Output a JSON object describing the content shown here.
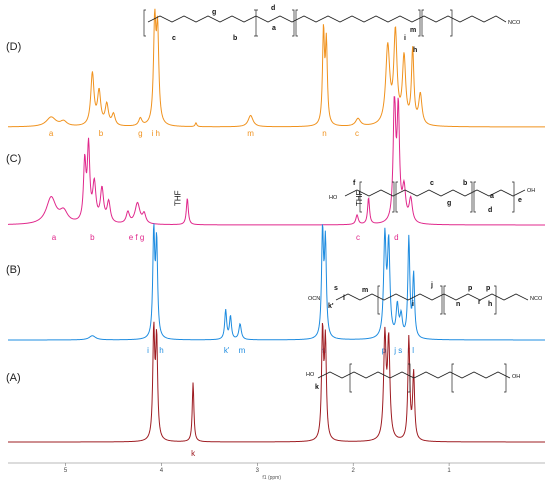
{
  "chart_data": {
    "type": "line",
    "xlabel": "f1 (ppm)",
    "xlim": [
      5.6,
      0.0
    ],
    "x_ticks": [
      "5",
      "4",
      "3",
      "2",
      "1"
    ],
    "series": [
      {
        "name": "(D)",
        "color": "#f0921e",
        "peaks": [
          {
            "x": 5.15,
            "h": 0.1,
            "w": 0.06
          },
          {
            "x": 5.02,
            "h": 0.05,
            "w": 0.04
          },
          {
            "x": 4.72,
            "h": 0.55,
            "w": 0.02
          },
          {
            "x": 4.65,
            "h": 0.35,
            "w": 0.02
          },
          {
            "x": 4.57,
            "h": 0.22,
            "w": 0.02
          },
          {
            "x": 4.5,
            "h": 0.12,
            "w": 0.02
          },
          {
            "x": 4.22,
            "h": 0.08,
            "w": 0.02
          },
          {
            "x": 4.07,
            "h": 1.05,
            "w": 0.015
          },
          {
            "x": 4.04,
            "h": 0.95,
            "w": 0.015
          },
          {
            "x": 3.64,
            "h": 0.04,
            "w": 0.01
          },
          {
            "x": 3.07,
            "h": 0.12,
            "w": 0.03
          },
          {
            "x": 2.31,
            "h": 0.98,
            "w": 0.012
          },
          {
            "x": 2.28,
            "h": 0.85,
            "w": 0.012
          },
          {
            "x": 1.95,
            "h": 0.08,
            "w": 0.03
          },
          {
            "x": 1.64,
            "h": 0.82,
            "w": 0.025
          },
          {
            "x": 1.56,
            "h": 0.95,
            "w": 0.02
          },
          {
            "x": 1.47,
            "h": 0.7,
            "w": 0.02
          },
          {
            "x": 1.38,
            "h": 0.78,
            "w": 0.015
          },
          {
            "x": 1.3,
            "h": 0.32,
            "w": 0.02
          }
        ],
        "peak_labels": [
          {
            "text": "a",
            "x": 5.15
          },
          {
            "text": "b",
            "x": 4.63
          },
          {
            "text": "g",
            "x": 4.22
          },
          {
            "text": "i h",
            "x": 4.06
          },
          {
            "text": "m",
            "x": 3.07
          },
          {
            "text": "n",
            "x": 2.3
          },
          {
            "text": "c",
            "x": 1.96
          }
        ]
      },
      {
        "name": "(C)",
        "color": "#e0288c",
        "peaks": [
          {
            "x": 5.15,
            "h": 0.28,
            "w": 0.06
          },
          {
            "x": 5.02,
            "h": 0.12,
            "w": 0.05
          },
          {
            "x": 4.8,
            "h": 0.62,
            "w": 0.015
          },
          {
            "x": 4.76,
            "h": 0.78,
            "w": 0.015
          },
          {
            "x": 4.7,
            "h": 0.4,
            "w": 0.02
          },
          {
            "x": 4.62,
            "h": 0.35,
            "w": 0.02
          },
          {
            "x": 4.55,
            "h": 0.22,
            "w": 0.02
          },
          {
            "x": 4.35,
            "h": 0.12,
            "w": 0.02
          },
          {
            "x": 4.25,
            "h": 0.22,
            "w": 0.03
          },
          {
            "x": 4.18,
            "h": 0.1,
            "w": 0.02
          },
          {
            "x": 3.73,
            "h": 0.28,
            "w": 0.012
          },
          {
            "x": 1.96,
            "h": 0.1,
            "w": 0.015
          },
          {
            "x": 1.84,
            "h": 0.28,
            "w": 0.012
          },
          {
            "x": 1.57,
            "h": 1.3,
            "w": 0.015
          },
          {
            "x": 1.53,
            "h": 1.15,
            "w": 0.015
          },
          {
            "x": 1.47,
            "h": 0.35,
            "w": 0.02
          },
          {
            "x": 1.4,
            "h": 0.25,
            "w": 0.02
          }
        ],
        "peak_labels": [
          {
            "text": "a",
            "x": 5.12
          },
          {
            "text": "b",
            "x": 4.72
          },
          {
            "text": "e f g",
            "x": 4.26
          },
          {
            "text": "c",
            "x": 1.95
          },
          {
            "text": "d",
            "x": 1.55
          }
        ],
        "annotations": [
          {
            "text": "THF",
            "x": 3.8
          },
          {
            "text": "THF",
            "x": 1.91
          }
        ]
      },
      {
        "name": "(B)",
        "color": "#1e8ce0",
        "peaks": [
          {
            "x": 4.72,
            "h": 0.04,
            "w": 0.04
          },
          {
            "x": 4.08,
            "h": 1.0,
            "w": 0.012
          },
          {
            "x": 4.05,
            "h": 0.9,
            "w": 0.012
          },
          {
            "x": 3.33,
            "h": 0.28,
            "w": 0.012
          },
          {
            "x": 3.28,
            "h": 0.22,
            "w": 0.012
          },
          {
            "x": 3.18,
            "h": 0.15,
            "w": 0.015
          },
          {
            "x": 2.32,
            "h": 1.0,
            "w": 0.012
          },
          {
            "x": 2.29,
            "h": 0.9,
            "w": 0.012
          },
          {
            "x": 1.67,
            "h": 0.95,
            "w": 0.015
          },
          {
            "x": 1.63,
            "h": 0.88,
            "w": 0.015
          },
          {
            "x": 1.54,
            "h": 0.3,
            "w": 0.015
          },
          {
            "x": 1.5,
            "h": 0.2,
            "w": 0.015
          },
          {
            "x": 1.42,
            "h": 0.95,
            "w": 0.012
          },
          {
            "x": 1.37,
            "h": 0.6,
            "w": 0.012
          }
        ],
        "peak_labels": [
          {
            "text": "i",
            "x": 4.14
          },
          {
            "text": "h",
            "x": 4.0
          },
          {
            "text": "k'",
            "x": 3.32
          },
          {
            "text": "m",
            "x": 3.16
          },
          {
            "text": "n",
            "x": 2.31
          },
          {
            "text": "p",
            "x": 1.68
          },
          {
            "text": "j s",
            "x": 1.53
          },
          {
            "text": "r l",
            "x": 1.4
          }
        ]
      },
      {
        "name": "(A)",
        "color": "#9e1c22",
        "peaks": [
          {
            "x": 4.08,
            "h": 1.0,
            "w": 0.012
          },
          {
            "x": 4.05,
            "h": 0.92,
            "w": 0.012
          },
          {
            "x": 3.67,
            "h": 0.55,
            "w": 0.01
          },
          {
            "x": 2.32,
            "h": 1.0,
            "w": 0.012
          },
          {
            "x": 2.29,
            "h": 0.9,
            "w": 0.012
          },
          {
            "x": 1.67,
            "h": 0.95,
            "w": 0.015
          },
          {
            "x": 1.63,
            "h": 0.9,
            "w": 0.015
          },
          {
            "x": 1.42,
            "h": 0.95,
            "w": 0.012
          },
          {
            "x": 1.37,
            "h": 0.62,
            "w": 0.012
          }
        ],
        "peak_labels": [
          {
            "text": "k",
            "x": 3.67
          }
        ]
      }
    ],
    "structure_labels": {
      "D": [
        "a",
        "b",
        "c",
        "d",
        "g",
        "h",
        "i",
        "m",
        "NCO"
      ],
      "C": [
        "f",
        "b",
        "a",
        "c",
        "g",
        "d",
        "e",
        "HO",
        "OH"
      ],
      "B": [
        "OCN",
        "s",
        "l",
        "m",
        "k'",
        "i",
        "j",
        "n",
        "p",
        "r",
        "p",
        "h",
        "NCO"
      ],
      "A": [
        "HO",
        "k",
        "OH"
      ]
    }
  }
}
